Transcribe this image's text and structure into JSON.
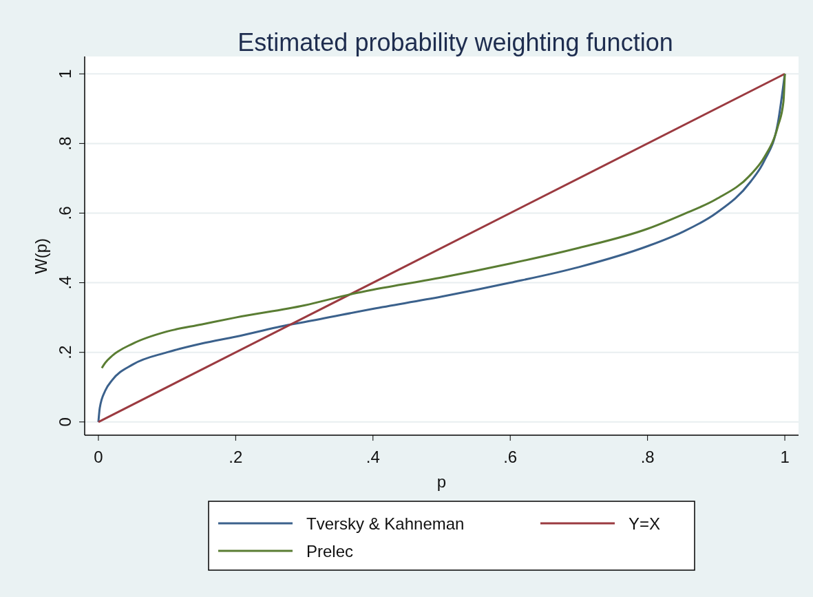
{
  "chart_data": {
    "type": "line",
    "title": "Estimated probability weighting function",
    "xlabel": "p",
    "ylabel": "W(p)",
    "xlim": [
      -0.02,
      1.02
    ],
    "ylim": [
      -0.038,
      1.05
    ],
    "xticks": [
      0,
      {
        "value": 0.2,
        "label": ".2"
      },
      {
        "value": 0.4,
        "label": ".4"
      },
      {
        "value": 0.6,
        "label": ".6"
      },
      {
        "value": 0.8,
        "label": ".8"
      },
      1
    ],
    "yticks": [
      0,
      {
        "value": 0.2,
        "label": ".2"
      },
      {
        "value": 0.4,
        "label": ".4"
      },
      {
        "value": 0.6,
        "label": ".6"
      },
      {
        "value": 0.8,
        "label": ".8"
      },
      1
    ],
    "grid": "y",
    "legend": "bottom",
    "line_style": "solid",
    "marker": "none",
    "series": [
      {
        "name": "Tversky & Kahneman",
        "color": "#3b618c",
        "x": [
          0,
          0.002,
          0.01,
          0.02,
          0.05,
          0.1,
          0.15,
          0.2,
          0.28,
          0.3,
          0.4,
          0.5,
          0.6,
          0.7,
          0.8,
          0.85,
          0.9,
          0.95,
          0.97,
          0.99,
          1
        ],
        "values": [
          0,
          0.04,
          0.09,
          0.12,
          0.165,
          0.2,
          0.225,
          0.245,
          0.28,
          0.287,
          0.325,
          0.36,
          0.4,
          0.445,
          0.505,
          0.545,
          0.6,
          0.69,
          0.75,
          0.86,
          1
        ]
      },
      {
        "name": "Y=X",
        "color": "#9b3a40",
        "x": [
          0,
          1
        ],
        "values": [
          0,
          1
        ]
      },
      {
        "name": "Prelec",
        "color": "#5a7d33",
        "x": [
          0.005,
          0.01,
          0.02,
          0.05,
          0.1,
          0.15,
          0.2,
          0.3,
          0.37,
          0.4,
          0.5,
          0.6,
          0.7,
          0.8,
          0.85,
          0.9,
          0.95,
          0.97,
          0.99,
          0.998,
          1
        ],
        "values": [
          0.155,
          0.17,
          0.19,
          0.225,
          0.26,
          0.28,
          0.3,
          0.335,
          0.368,
          0.38,
          0.415,
          0.455,
          0.5,
          0.555,
          0.595,
          0.64,
          0.71,
          0.76,
          0.85,
          0.92,
          1
        ]
      }
    ]
  }
}
